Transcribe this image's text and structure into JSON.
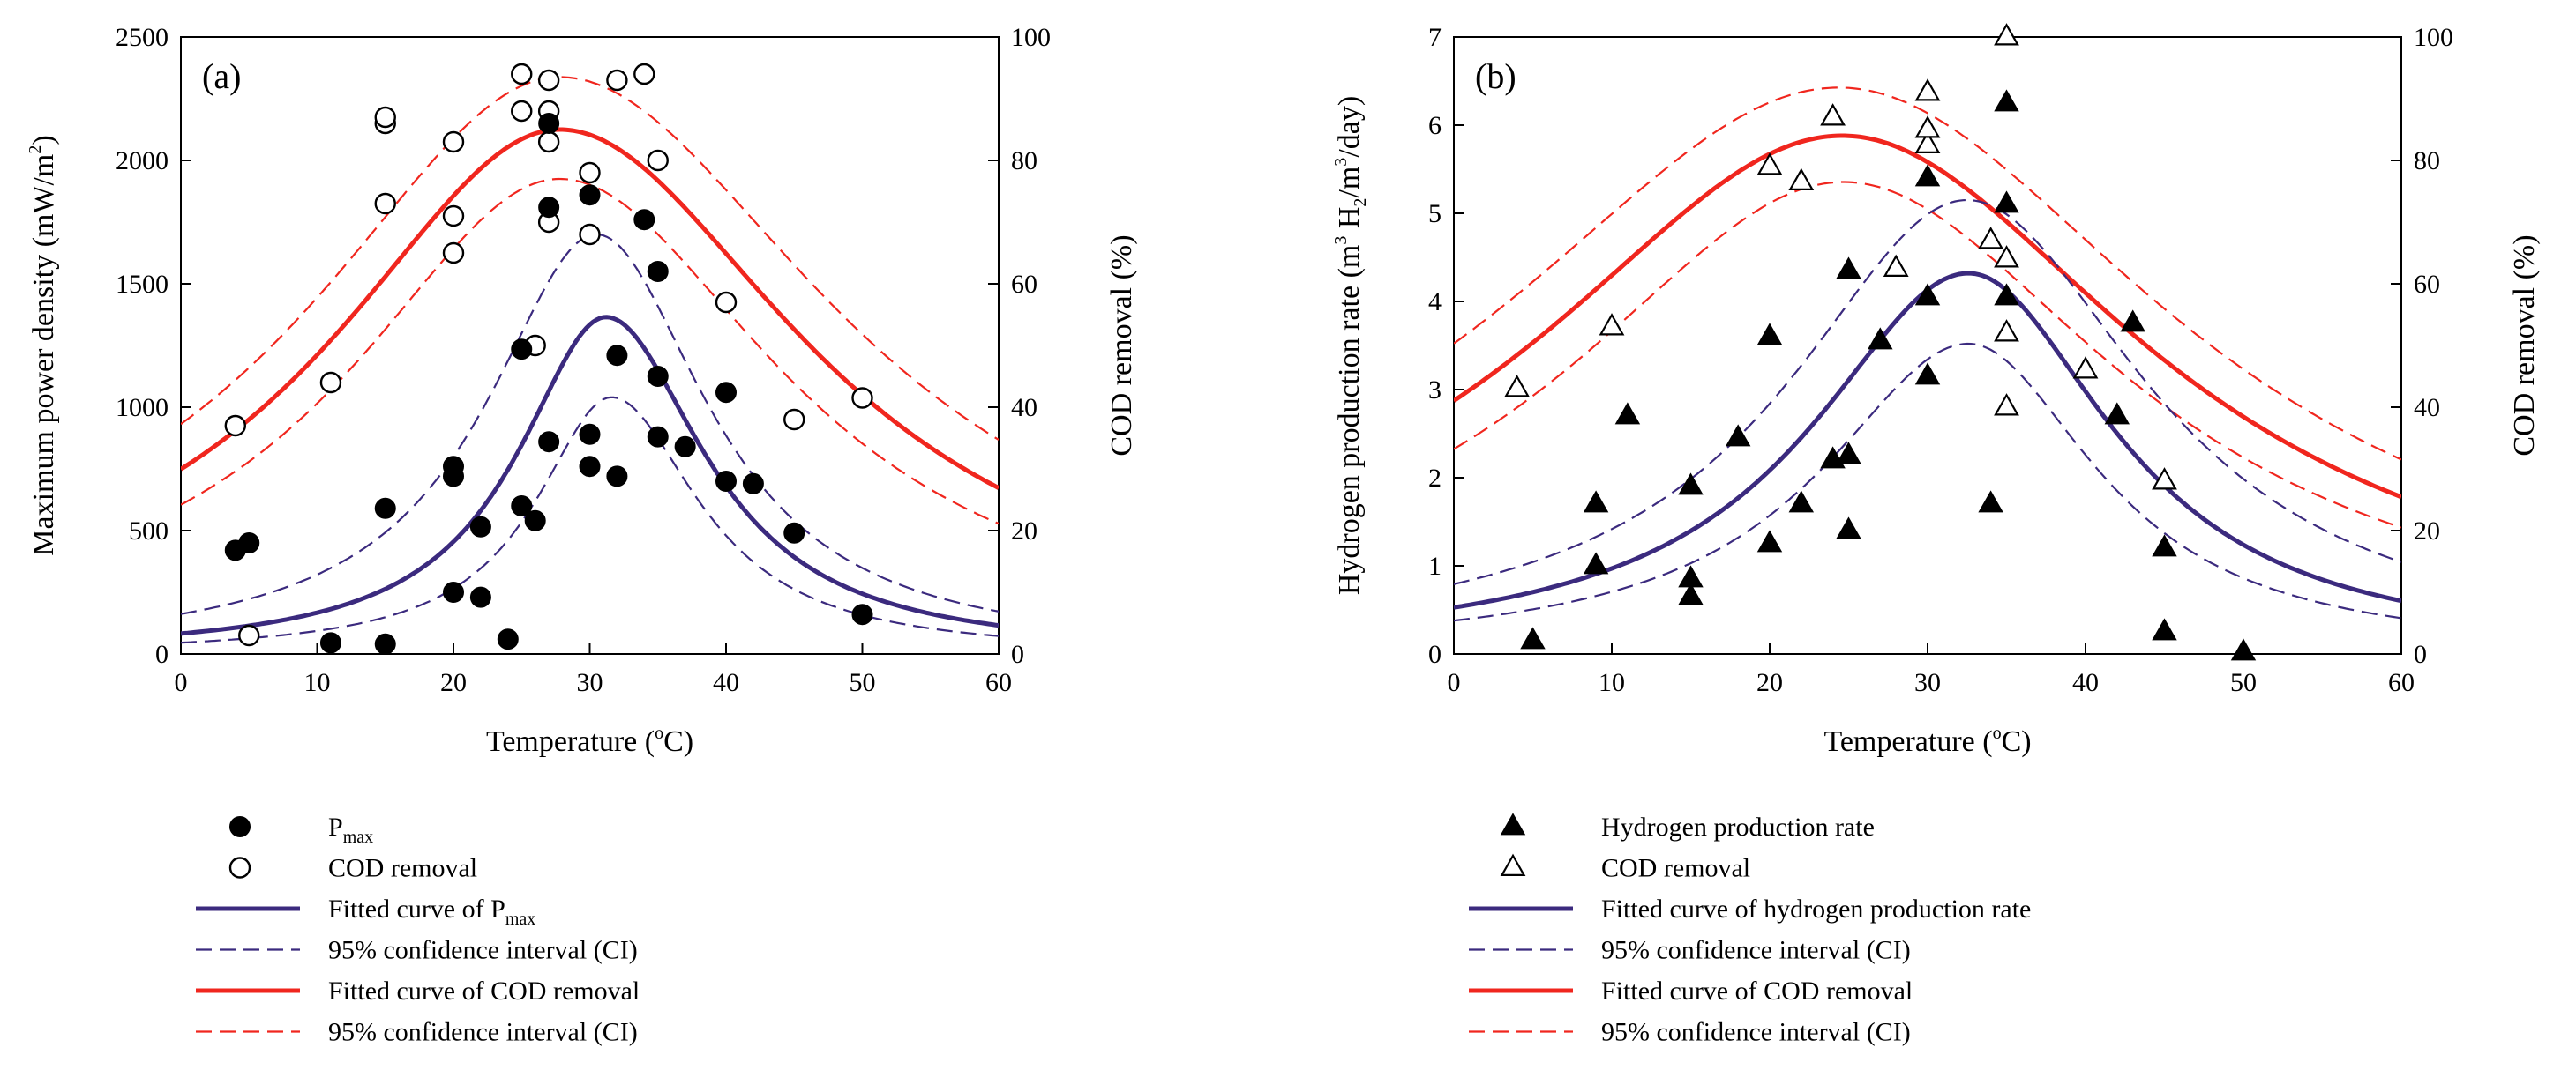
{
  "colors": {
    "blue": "#3B2A7E",
    "red": "#F0261E",
    "black": "#000000"
  },
  "chart_data": [
    {
      "type": "scatter",
      "panel_label": "(a)",
      "xlabel": {
        "base": "Temperature (",
        "sup": "o",
        "tail": "C)"
      },
      "ylabel": {
        "base": "Maximum power density (mW/m",
        "sup": "2",
        "tail": ")"
      },
      "y2label": "COD removal (%)",
      "xlim": [
        0,
        60
      ],
      "xticks": [
        0,
        10,
        20,
        30,
        40,
        50,
        60
      ],
      "ylim": [
        0,
        2500
      ],
      "yticks": [
        0,
        500,
        1000,
        1500,
        2000,
        2500
      ],
      "y2lim": [
        0,
        100
      ],
      "y2ticks": [
        0,
        20,
        40,
        60,
        80,
        100
      ],
      "primary_points": {
        "name": "Pmax",
        "marker": "filled-circle",
        "points": [
          [
            4,
            420
          ],
          [
            5,
            450
          ],
          [
            11,
            45
          ],
          [
            15,
            40
          ],
          [
            15,
            590
          ],
          [
            20,
            250
          ],
          [
            20,
            720
          ],
          [
            20,
            760
          ],
          [
            22,
            230
          ],
          [
            22,
            515
          ],
          [
            24,
            60
          ],
          [
            25,
            600
          ],
          [
            25,
            1235
          ],
          [
            26,
            540
          ],
          [
            27,
            860
          ],
          [
            27,
            1810
          ],
          [
            27,
            2150
          ],
          [
            30,
            760
          ],
          [
            30,
            890
          ],
          [
            30,
            1860
          ],
          [
            32,
            720
          ],
          [
            32,
            1210
          ],
          [
            34,
            1760
          ],
          [
            35,
            880
          ],
          [
            35,
            1125
          ],
          [
            35,
            1550
          ],
          [
            37,
            840
          ],
          [
            40,
            700
          ],
          [
            40,
            1060
          ],
          [
            42,
            690
          ],
          [
            45,
            490
          ],
          [
            50,
            160
          ]
        ]
      },
      "secondary_points": {
        "name": "COD removal",
        "marker": "open-circle",
        "points": [
          [
            4,
            37
          ],
          [
            5,
            3
          ],
          [
            11,
            44
          ],
          [
            15,
            73
          ],
          [
            15,
            86
          ],
          [
            15,
            87
          ],
          [
            20,
            65
          ],
          [
            20,
            71
          ],
          [
            20,
            83
          ],
          [
            25,
            88
          ],
          [
            25,
            94
          ],
          [
            26,
            50
          ],
          [
            27,
            70
          ],
          [
            27,
            83
          ],
          [
            27,
            88
          ],
          [
            27,
            93
          ],
          [
            30,
            68
          ],
          [
            30,
            78
          ],
          [
            32,
            93
          ],
          [
            34,
            94
          ],
          [
            35,
            80
          ],
          [
            40,
            57
          ],
          [
            45,
            38
          ],
          [
            50,
            41.5
          ]
        ]
      },
      "primary_fit": {
        "peak": 1365,
        "center": 31.2,
        "left_width": 5.6,
        "right_width": 6.2,
        "base": 100,
        "base_decay": 33
      },
      "primary_ci_upper": {
        "peak": 1700,
        "center": 30.5,
        "left_width": 7.0,
        "right_width": 7.0,
        "base": 190,
        "base_decay": 40
      },
      "primary_ci_lower": {
        "peak": 1040,
        "center": 31.6,
        "left_width": 4.8,
        "right_width": 5.5,
        "base": 30,
        "base_decay": 30
      },
      "secondary_fit": {
        "peak": 85,
        "center": 27.8,
        "left_width": 14.5,
        "right_width": 15.5,
        "base": 0
      },
      "secondary_ci_upper": {
        "peak": 93.5,
        "center": 27.8,
        "left_width": 16.0,
        "right_width": 17.5,
        "base": 0
      },
      "secondary_ci_lower": {
        "peak": 77,
        "center": 27.8,
        "left_width": 13.3,
        "right_width": 14.0,
        "base": 0
      },
      "legend": [
        {
          "symbol": "filled-circle",
          "label": "P",
          "sub": "max"
        },
        {
          "symbol": "open-circle",
          "label": "COD removal"
        },
        {
          "symbol": "blue-solid",
          "label": "Fitted curve of P",
          "sub": "max"
        },
        {
          "symbol": "blue-dash",
          "label": "95% confidence interval (CI)"
        },
        {
          "symbol": "red-solid",
          "label": "Fitted curve of COD removal"
        },
        {
          "symbol": "red-dash",
          "label": "95% confidence interval (CI)"
        }
      ]
    },
    {
      "type": "scatter",
      "panel_label": "(b)",
      "xlabel": {
        "base": "Temperature (",
        "sup": "o",
        "tail": "C)"
      },
      "ylabel": {
        "base": "Hydrogen production rate (m",
        "sup": "3",
        "mid": " H",
        "sub": "2",
        "mid2": "/m",
        "sup2": "3",
        "tail": "/day)"
      },
      "y2label": "COD removal (%)",
      "xlim": [
        0,
        60
      ],
      "xticks": [
        0,
        10,
        20,
        30,
        40,
        50,
        60
      ],
      "ylim": [
        0,
        7
      ],
      "yticks": [
        0,
        1,
        2,
        3,
        4,
        5,
        6,
        7
      ],
      "y2lim": [
        0,
        100
      ],
      "y2ticks": [
        0,
        20,
        40,
        60,
        80,
        100
      ],
      "primary_points": {
        "name": "Hydrogen production rate",
        "marker": "filled-triangle",
        "points": [
          [
            5,
            0.15
          ],
          [
            9,
            1.0
          ],
          [
            9,
            1.7
          ],
          [
            11,
            2.7
          ],
          [
            15,
            0.65
          ],
          [
            15,
            0.85
          ],
          [
            15,
            1.9
          ],
          [
            18,
            2.45
          ],
          [
            20,
            1.25
          ],
          [
            20,
            3.6
          ],
          [
            22,
            1.7
          ],
          [
            24,
            2.2
          ],
          [
            25,
            1.4
          ],
          [
            25,
            2.25
          ],
          [
            25,
            4.35
          ],
          [
            27,
            3.55
          ],
          [
            30,
            3.15
          ],
          [
            30,
            4.05
          ],
          [
            30,
            5.4
          ],
          [
            34,
            1.7
          ],
          [
            35,
            4.05
          ],
          [
            35,
            5.1
          ],
          [
            35,
            6.25
          ],
          [
            42,
            2.7
          ],
          [
            43,
            3.75
          ],
          [
            45,
            0.25
          ],
          [
            45,
            1.2
          ],
          [
            50,
            0.02
          ]
        ]
      },
      "secondary_points": {
        "name": "COD removal",
        "marker": "open-triangle",
        "points": [
          [
            4,
            43
          ],
          [
            10,
            53
          ],
          [
            20,
            79
          ],
          [
            22,
            76.5
          ],
          [
            24,
            87
          ],
          [
            28,
            62.5
          ],
          [
            30,
            82.5
          ],
          [
            30,
            85
          ],
          [
            30,
            91
          ],
          [
            34,
            67
          ],
          [
            35,
            40
          ],
          [
            35,
            52
          ],
          [
            35,
            64
          ],
          [
            35,
            100
          ],
          [
            40,
            46
          ],
          [
            45,
            28
          ]
        ]
      },
      "primary_fit": {
        "peak": 4.32,
        "center": 32.6,
        "left_width": 8.6,
        "right_width": 7.8,
        "base": 0
      },
      "primary_ci_upper": {
        "peak": 5.15,
        "center": 32.5,
        "left_width": 9.8,
        "right_width": 9.8,
        "base": 0
      },
      "primary_ci_lower": {
        "peak": 3.52,
        "center": 32.6,
        "left_width": 8.0,
        "right_width": 7.0,
        "base": 0
      },
      "secondary_fit": {
        "peak": 84,
        "center": 24.6,
        "left_width": 17.0,
        "right_width": 16.5,
        "base": 0
      },
      "secondary_ci_upper": {
        "peak": 91.8,
        "center": 24.4,
        "left_width": 19.0,
        "right_width": 18.2,
        "base": 0
      },
      "secondary_ci_lower": {
        "peak": 76.5,
        "center": 24.7,
        "left_width": 15.3,
        "right_width": 15.1,
        "base": 0
      },
      "legend": [
        {
          "symbol": "filled-triangle",
          "label": "Hydrogen production rate"
        },
        {
          "symbol": "open-triangle",
          "label": "COD removal"
        },
        {
          "symbol": "blue-solid",
          "label": "Fitted curve of hydrogen production rate"
        },
        {
          "symbol": "blue-dash",
          "label": "95% confidence interval (CI)"
        },
        {
          "symbol": "red-solid",
          "label": "Fitted curve of COD removal"
        },
        {
          "symbol": "red-dash",
          "label": "95% confidence interval (CI)"
        }
      ]
    }
  ]
}
